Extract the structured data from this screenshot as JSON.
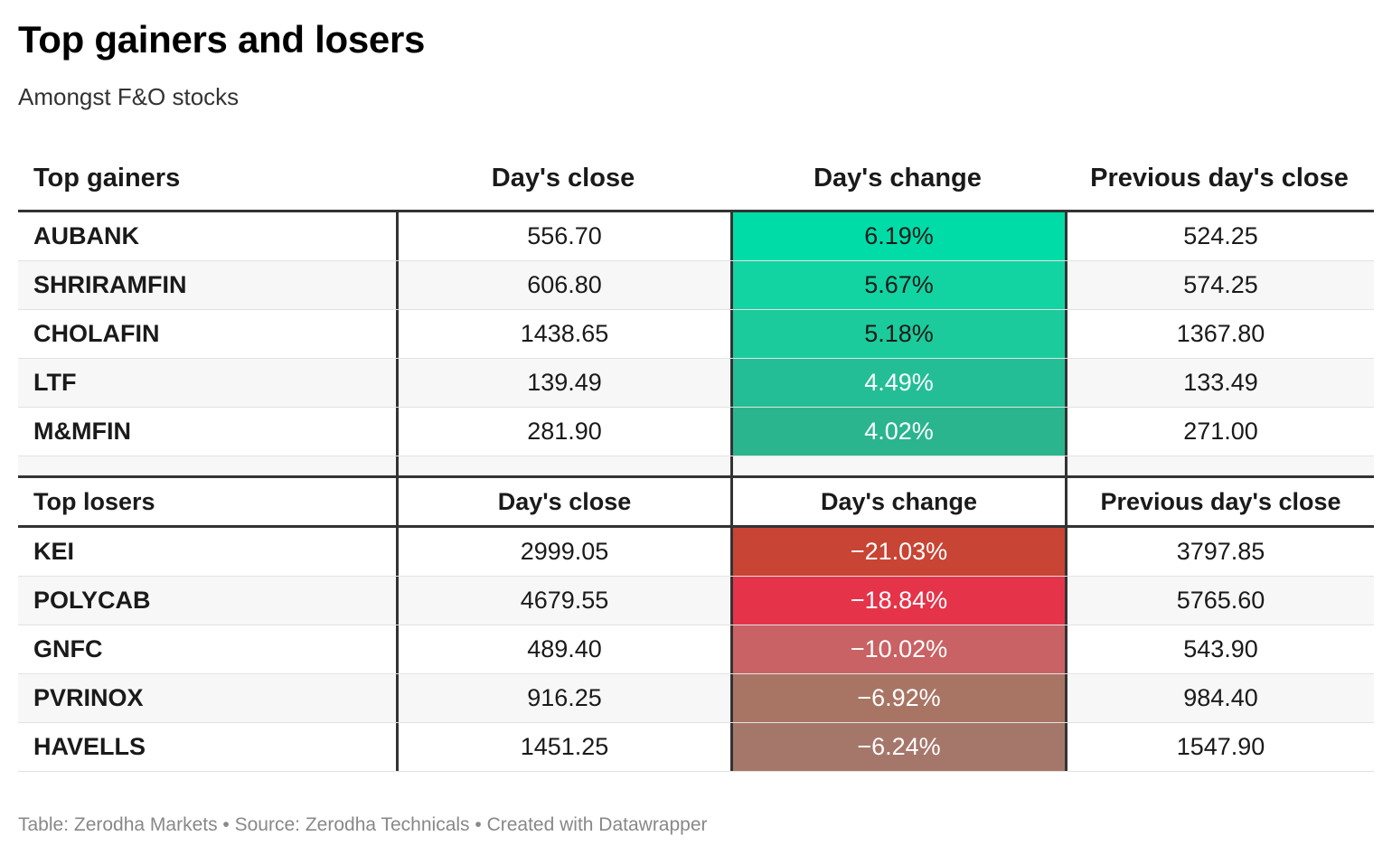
{
  "title": "Top gainers and losers",
  "subtitle": "Amongst F&O stocks",
  "footer": "Table: Zerodha Markets • Source: Zerodha Technicals • Created with Datawrapper",
  "chart_data": {
    "type": "table",
    "title": "Top gainers and losers",
    "subtitle": "Amongst F&O stocks",
    "gainers": {
      "headers": [
        "Top gainers",
        "Day's close",
        "Day's change",
        "Previous day's close"
      ],
      "rows": [
        {
          "name": "AUBANK",
          "close": "556.70",
          "change": "6.19%",
          "prev": "524.25",
          "color": "#00dca8",
          "text_color": "#1a1a1a"
        },
        {
          "name": "SHRIRAMFIN",
          "close": "606.80",
          "change": "5.67%",
          "prev": "574.25",
          "color": "#12d4a2",
          "text_color": "#1a1a1a"
        },
        {
          "name": "CHOLAFIN",
          "close": "1438.65",
          "change": "5.18%",
          "prev": "1367.80",
          "color": "#1ccb9c",
          "text_color": "#1a1a1a"
        },
        {
          "name": "LTF",
          "close": "139.49",
          "change": "4.49%",
          "prev": "133.49",
          "color": "#23be95",
          "text_color": "#ffffff"
        },
        {
          "name": "M&MFIN",
          "close": "281.90",
          "change": "4.02%",
          "prev": "271.00",
          "color": "#2ab58f",
          "text_color": "#ffffff"
        }
      ]
    },
    "losers": {
      "headers": [
        "Top losers",
        "Day's close",
        "Day's change",
        "Previous day's close"
      ],
      "rows": [
        {
          "name": "KEI",
          "close": "2999.05",
          "change": "−21.03%",
          "prev": "3797.85",
          "color": "#c84434",
          "text_color": "#ffffff"
        },
        {
          "name": "POLYCAB",
          "close": "4679.55",
          "change": "−18.84%",
          "prev": "5765.60",
          "color": "#e5344a",
          "text_color": "#ffffff"
        },
        {
          "name": "GNFC",
          "close": "489.40",
          "change": "−10.02%",
          "prev": "543.90",
          "color": "#c96264",
          "text_color": "#ffffff"
        },
        {
          "name": "PVRINOX",
          "close": "916.25",
          "change": "−6.92%",
          "prev": "984.40",
          "color": "#a87565",
          "text_color": "#ffffff"
        },
        {
          "name": "HAVELLS",
          "close": "1451.25",
          "change": "−6.24%",
          "prev": "1547.90",
          "color": "#a5776b",
          "text_color": "#ffffff"
        }
      ]
    }
  }
}
